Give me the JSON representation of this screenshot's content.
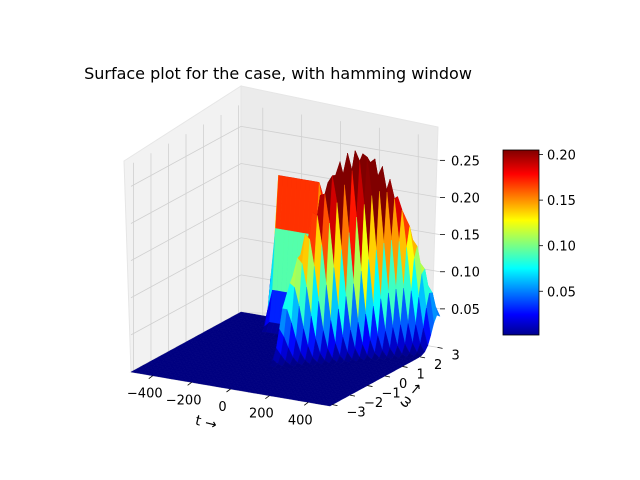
{
  "chart_data": {
    "type": "surface3d",
    "title": "Surface plot for the case, with hamming window",
    "xlabel": "t →",
    "ylabel": "ω →",
    "zlabel": "",
    "xlim": [
      -512,
      512
    ],
    "ylim": [
      -3.14,
      3.14
    ],
    "zlim": [
      0,
      0.28
    ],
    "x_ticks": [
      {
        "value": -400,
        "label": "−400"
      },
      {
        "value": -200,
        "label": "−200"
      },
      {
        "value": 0,
        "label": "0"
      },
      {
        "value": 200,
        "label": "200"
      },
      {
        "value": 400,
        "label": "400"
      }
    ],
    "y_ticks": [
      {
        "value": -3,
        "label": "−3"
      },
      {
        "value": -2,
        "label": "−2"
      },
      {
        "value": -1,
        "label": "−1"
      },
      {
        "value": 0,
        "label": "0"
      },
      {
        "value": 1,
        "label": "1"
      },
      {
        "value": 2,
        "label": "2"
      },
      {
        "value": 3,
        "label": "3"
      }
    ],
    "z_ticks": [
      {
        "value": 0.05,
        "label": "0.05"
      },
      {
        "value": 0.1,
        "label": "0.10"
      },
      {
        "value": 0.15,
        "label": "0.15"
      },
      {
        "value": 0.2,
        "label": "0.20"
      },
      {
        "value": 0.25,
        "label": "0.25"
      }
    ],
    "colormap": "jet",
    "grid": true,
    "colorbar": {
      "position": "right",
      "range": [
        0.002,
        0.205
      ],
      "ticks": [
        {
          "value": 0.05,
          "label": "0.05"
        },
        {
          "value": 0.1,
          "label": "0.10"
        },
        {
          "value": 0.15,
          "label": "0.15"
        },
        {
          "value": 0.2,
          "label": "0.20"
        }
      ]
    },
    "surface": {
      "description_of_values": "magnitude of spectrum; peak ridge for t < 0 about 0.21 at ω about ±2.5 (flat noisy band); chirp-like ridge for t > 0 rising up to about 0.27",
      "ridge_low": {
        "t_range": [
          -512,
          0
        ],
        "omega": 2.5,
        "z": 0.21
      },
      "ridge_high": {
        "t_range": [
          0,
          512
        ],
        "z_peak": 0.275
      },
      "floor": 0.0
    }
  }
}
